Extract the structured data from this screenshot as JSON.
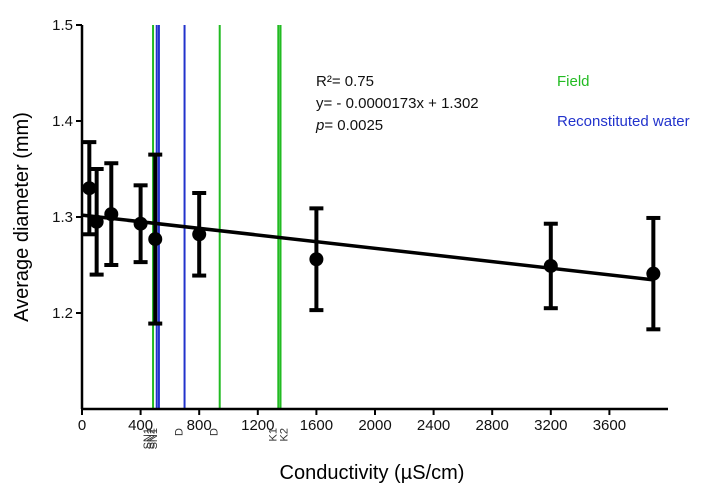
{
  "chart_data": {
    "type": "scatter",
    "title": "",
    "xlabel": "Conductivity (µS/cm)",
    "ylabel": "Average diameter (mm)",
    "xlim": [
      0,
      4000
    ],
    "ylim": [
      1.1,
      1.5
    ],
    "x_ticks": [
      0,
      400,
      800,
      1200,
      1600,
      2000,
      2400,
      2800,
      3200,
      3600
    ],
    "y_ticks": [
      1.2,
      1.3,
      1.4,
      1.5
    ],
    "grid": false,
    "points": [
      {
        "x": 50,
        "y": 1.33,
        "err": 0.048
      },
      {
        "x": 100,
        "y": 1.295,
        "err": 0.055
      },
      {
        "x": 200,
        "y": 1.303,
        "err": 0.053
      },
      {
        "x": 400,
        "y": 1.293,
        "err": 0.04
      },
      {
        "x": 500,
        "y": 1.277,
        "err": 0.088
      },
      {
        "x": 800,
        "y": 1.282,
        "err": 0.043
      },
      {
        "x": 1600,
        "y": 1.256,
        "err": 0.053
      },
      {
        "x": 3200,
        "y": 1.249,
        "err": 0.044
      },
      {
        "x": 3900,
        "y": 1.241,
        "err": 0.058
      }
    ],
    "regression": {
      "slope": -1.73e-05,
      "intercept": 1.302,
      "x_start": 0,
      "x_end": 3900
    },
    "vertical_lines": [
      {
        "x": 485,
        "color": "#22bb22",
        "labels": [
          "SN1"
        ]
      },
      {
        "x": 510,
        "color": "#2233cc",
        "labels": [
          "SN2"
        ]
      },
      {
        "x": 525,
        "color": "#2233cc",
        "labels": [
          "SN1"
        ]
      },
      {
        "x": 700,
        "color": "#2233cc",
        "labels": [
          "D"
        ]
      },
      {
        "x": 940,
        "color": "#22bb22",
        "labels": [
          "D"
        ]
      },
      {
        "x": 1340,
        "color": "#22bb22",
        "labels": [
          "K1",
          "K2"
        ]
      },
      {
        "x": 1355,
        "color": "#22bb22",
        "labels": []
      }
    ],
    "annotation_lines": [
      "R²= 0.75",
      "y= - 0.0000173x + 1.302",
      "= 0.0025"
    ],
    "annotation_p_prefix": "p",
    "legend": [
      {
        "label": "Field",
        "color": "#22bb22"
      },
      {
        "label": "Reconstituted water",
        "color": "#2233cc"
      }
    ],
    "legend_position": "top-right"
  }
}
